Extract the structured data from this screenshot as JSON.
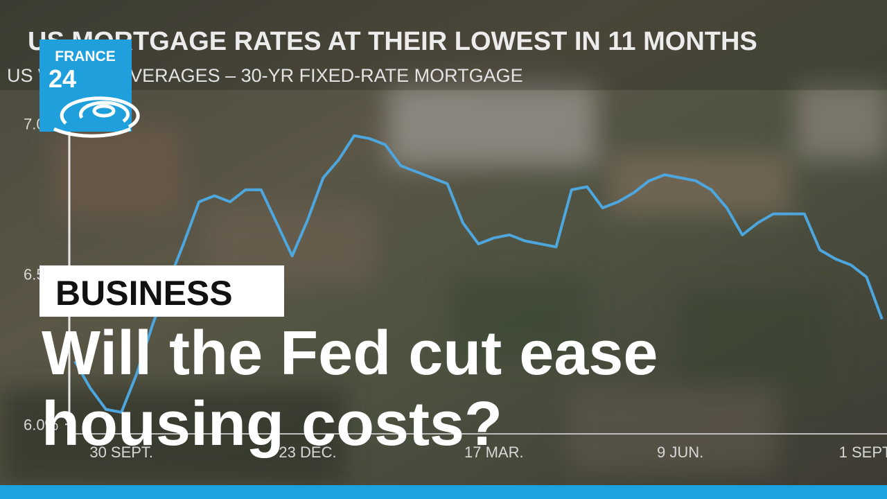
{
  "chart_data": {
    "type": "line",
    "title": "US MORTGAGE RATES AT THEIR LOWEST IN 11 MONTHS",
    "subtitle": "US WEEKLY AVERAGES – 30-YR FIXED-RATE MORTGAGE",
    "categories": [
      null,
      null,
      null,
      "30 SEPT.",
      null,
      null,
      null,
      null,
      null,
      null,
      null,
      null,
      null,
      null,
      null,
      "23 DEC.",
      null,
      null,
      null,
      null,
      null,
      null,
      null,
      null,
      null,
      null,
      null,
      "17 MAR.",
      null,
      null,
      null,
      null,
      null,
      null,
      null,
      null,
      null,
      null,
      null,
      "9 JUN.",
      null,
      null,
      null,
      null,
      null,
      null,
      null,
      null,
      null,
      null,
      null,
      "1 SEPT.",
      null
    ],
    "series": [
      {
        "color": "#4da6dd",
        "values": [
          6.21,
          6.12,
          6.05,
          6.04,
          6.17,
          6.33,
          6.47,
          6.6,
          6.74,
          6.76,
          6.74,
          6.78,
          6.78,
          6.67,
          6.56,
          6.68,
          6.82,
          6.88,
          6.96,
          6.95,
          6.93,
          6.86,
          6.84,
          6.82,
          6.8,
          6.67,
          6.6,
          6.62,
          6.63,
          6.61,
          6.6,
          6.59,
          6.78,
          6.79,
          6.72,
          6.74,
          6.77,
          6.81,
          6.83,
          6.82,
          6.81,
          6.78,
          6.72,
          6.63,
          6.67,
          6.7,
          6.7,
          6.7,
          6.58,
          6.55,
          6.53,
          6.49,
          6.35
        ]
      }
    ],
    "ylim": [
      5.95,
      7.1
    ],
    "yticks": [
      {
        "value": 7,
        "label": "7.0%"
      },
      {
        "value": 6.5,
        "label": "6.5%"
      },
      {
        "value": 6,
        "label": "6.0%"
      }
    ]
  },
  "logo": {
    "line1": "FRANCE",
    "line2": "24"
  },
  "section": "BUSINESS",
  "headline": [
    "Will the Fed cut ease",
    "housing costs?"
  ]
}
